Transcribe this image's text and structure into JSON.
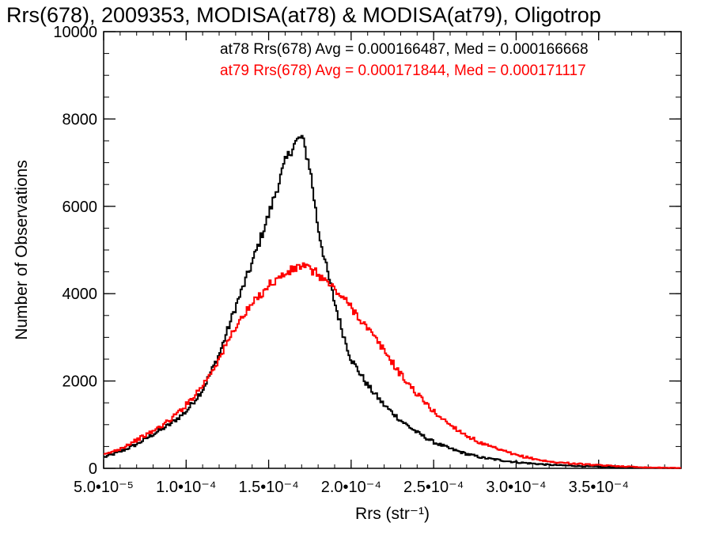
{
  "chart_data": {
    "type": "histogram",
    "title": "Rrs(678), 2009353, MODISA(at78) & MODISA(at79), Oligotrop",
    "xlabel": "Rrs (str⁻¹)",
    "ylabel": "Number of Observations",
    "xlim": [
      5e-05,
      0.0004
    ],
    "ylim": [
      0,
      10000
    ],
    "x_ticks": [
      {
        "value": 5e-05,
        "label": "5.0•10⁻⁵"
      },
      {
        "value": 0.0001,
        "label": "1.0•10⁻⁴"
      },
      {
        "value": 0.00015,
        "label": "1.5•10⁻⁴"
      },
      {
        "value": 0.0002,
        "label": "2.0•10⁻⁴"
      },
      {
        "value": 0.00025,
        "label": "2.5•10⁻⁴"
      },
      {
        "value": 0.0003,
        "label": "3.0•10⁻⁴"
      },
      {
        "value": 0.00035,
        "label": "3.5•10⁻⁴"
      }
    ],
    "y_ticks": [
      {
        "value": 0,
        "label": "0"
      },
      {
        "value": 2000,
        "label": "2000"
      },
      {
        "value": 4000,
        "label": "4000"
      },
      {
        "value": 6000,
        "label": "6000"
      },
      {
        "value": 8000,
        "label": "8000"
      },
      {
        "value": 10000,
        "label": "10000"
      }
    ],
    "series": [
      {
        "name": "at78",
        "color": "#000000",
        "legend_text": "at78 Rrs(678) Avg = 0.000166487, Med = 0.000166668",
        "points": [
          [
            5e-05,
            250
          ],
          [
            6e-05,
            380
          ],
          [
            7e-05,
            550
          ],
          [
            8e-05,
            780
          ],
          [
            9e-05,
            1000
          ],
          [
            0.0001,
            1300
          ],
          [
            0.00011,
            1800
          ],
          [
            0.00012,
            2600
          ],
          [
            0.00013,
            3700
          ],
          [
            0.00014,
            4700
          ],
          [
            0.00015,
            5800
          ],
          [
            0.00016,
            7000
          ],
          [
            0.000165,
            7400
          ],
          [
            0.00017,
            7600
          ],
          [
            0.000175,
            6900
          ],
          [
            0.00018,
            5500
          ],
          [
            0.000185,
            4600
          ],
          [
            0.00019,
            3800
          ],
          [
            0.000195,
            3100
          ],
          [
            0.0002,
            2500
          ],
          [
            0.00021,
            1900
          ],
          [
            0.00022,
            1450
          ],
          [
            0.00023,
            1100
          ],
          [
            0.00024,
            820
          ],
          [
            0.00025,
            600
          ],
          [
            0.00026,
            450
          ],
          [
            0.00027,
            330
          ],
          [
            0.00028,
            240
          ],
          [
            0.0003,
            140
          ],
          [
            0.00032,
            80
          ],
          [
            0.00035,
            35
          ],
          [
            0.00038,
            15
          ],
          [
            0.0004,
            5
          ]
        ]
      },
      {
        "name": "at79",
        "color": "#ff0000",
        "legend_text": "at79 Rrs(678) Avg = 0.000171844, Med = 0.000171117",
        "points": [
          [
            5e-05,
            300
          ],
          [
            6e-05,
            450
          ],
          [
            7e-05,
            650
          ],
          [
            8e-05,
            850
          ],
          [
            9e-05,
            1100
          ],
          [
            0.0001,
            1450
          ],
          [
            0.00011,
            1900
          ],
          [
            0.00012,
            2500
          ],
          [
            0.00013,
            3250
          ],
          [
            0.00014,
            3750
          ],
          [
            0.00015,
            4200
          ],
          [
            0.00016,
            4450
          ],
          [
            0.00017,
            4650
          ],
          [
            0.00018,
            4450
          ],
          [
            0.00019,
            4100
          ],
          [
            0.0002,
            3700
          ],
          [
            0.00021,
            3200
          ],
          [
            0.00022,
            2700
          ],
          [
            0.00023,
            2150
          ],
          [
            0.00024,
            1700
          ],
          [
            0.00025,
            1300
          ],
          [
            0.00026,
            1000
          ],
          [
            0.00027,
            750
          ],
          [
            0.00028,
            550
          ],
          [
            0.0003,
            300
          ],
          [
            0.00032,
            150
          ],
          [
            0.00035,
            70
          ],
          [
            0.00038,
            20
          ],
          [
            0.0004,
            8
          ]
        ]
      }
    ]
  }
}
